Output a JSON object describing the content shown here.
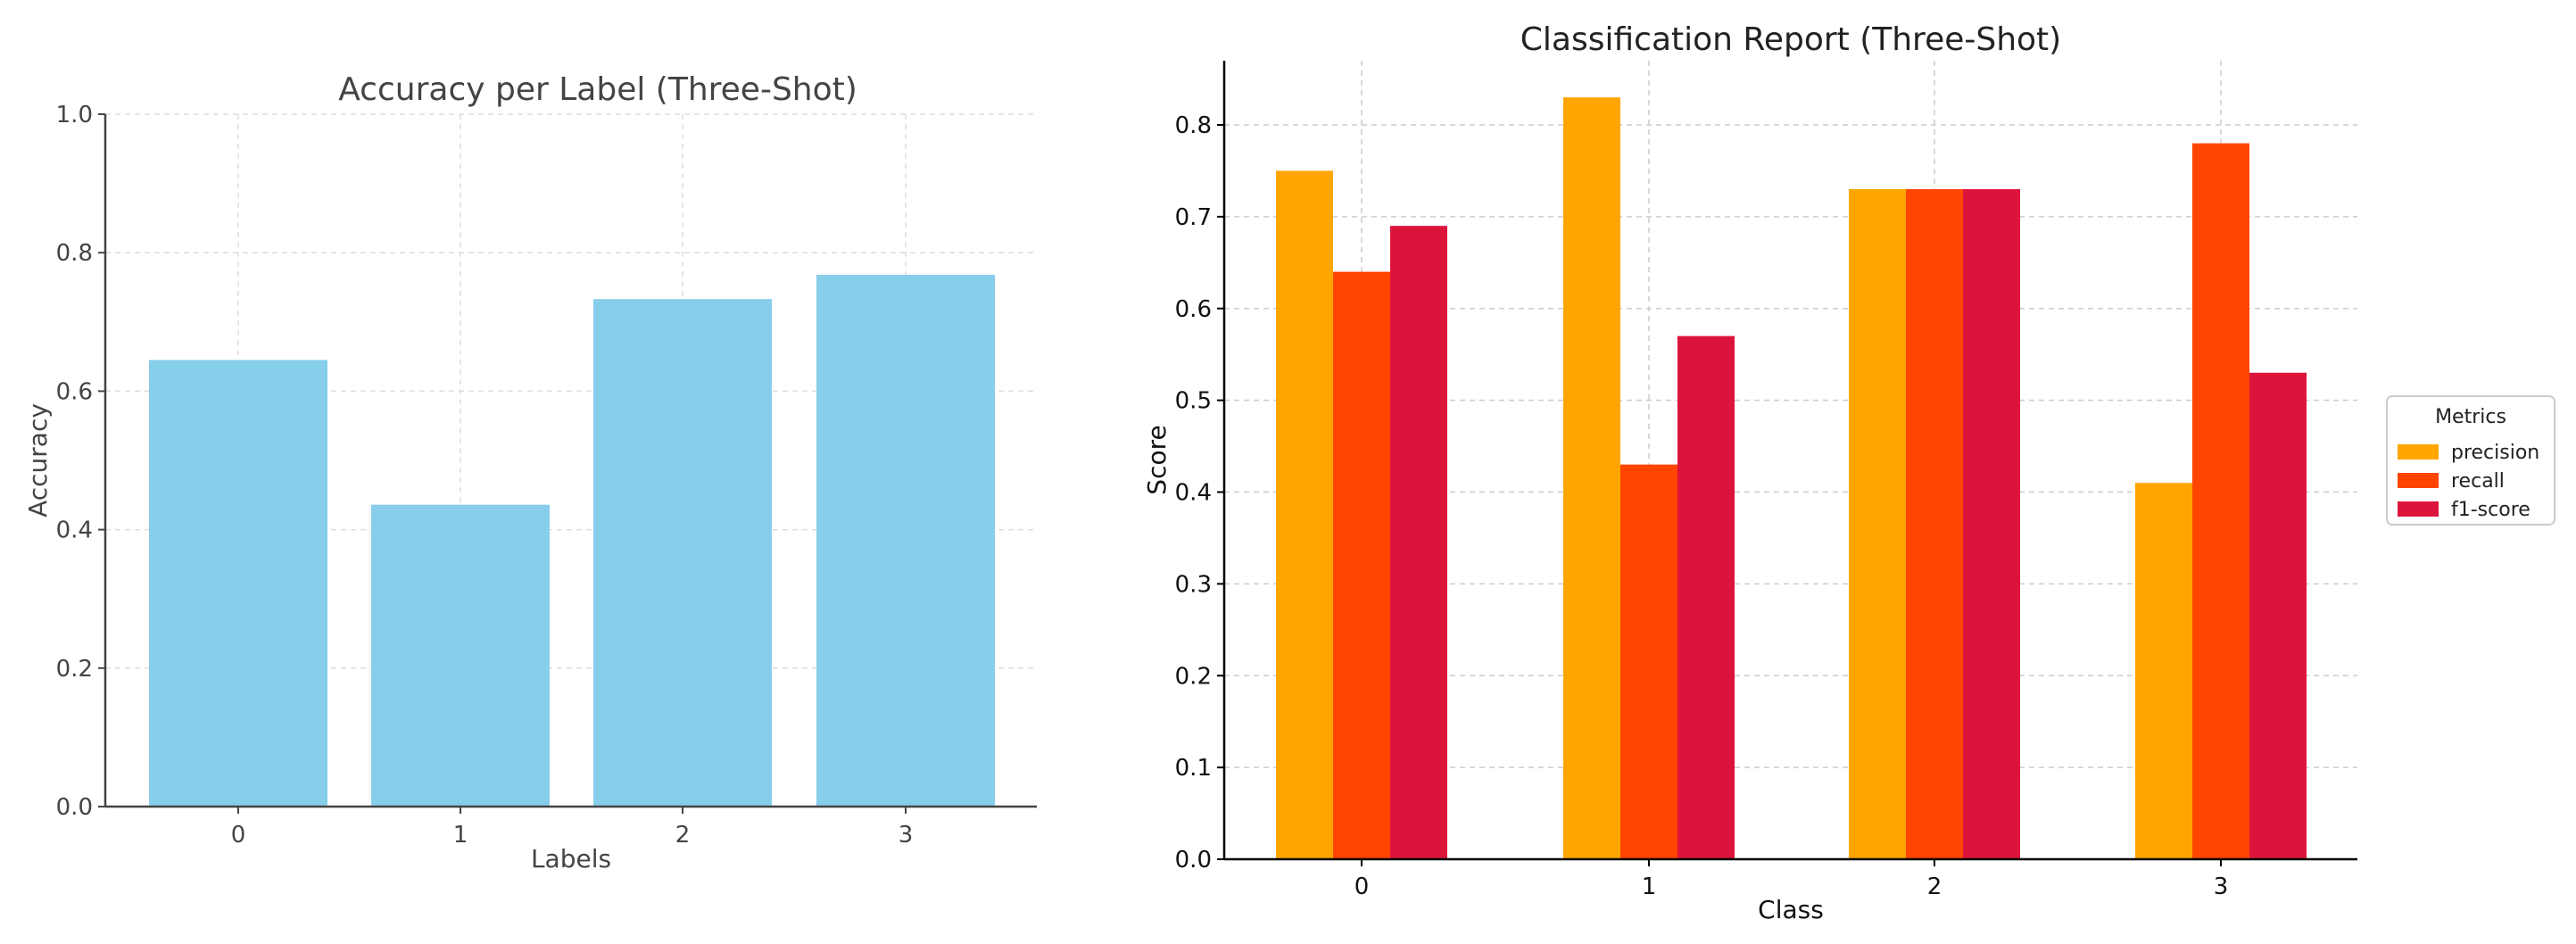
{
  "chart_data": [
    {
      "type": "bar",
      "title": "Accuracy per Label (Three-Shot)",
      "xlabel": "Labels",
      "ylabel": "Accuracy",
      "categories": [
        "0",
        "1",
        "2",
        "3"
      ],
      "values": [
        0.645,
        0.436,
        0.733,
        0.768
      ],
      "ylim": [
        0,
        1.0
      ],
      "yticks": [
        "0.0",
        "0.2",
        "0.4",
        "0.6",
        "0.8",
        "1.0"
      ],
      "yticks_values": [
        0,
        0.2,
        0.4,
        0.6,
        0.8,
        1.0
      ],
      "grid": true,
      "color": "#87CEEB"
    },
    {
      "type": "bar",
      "title": "Classification Report (Three-Shot)",
      "xlabel": "Class",
      "ylabel": "Score",
      "categories": [
        "0",
        "1",
        "2",
        "3"
      ],
      "series": [
        {
          "name": "precision",
          "values": [
            0.75,
            0.83,
            0.73,
            0.41
          ],
          "color": "#FFA500"
        },
        {
          "name": "recall",
          "values": [
            0.64,
            0.43,
            0.73,
            0.78
          ],
          "color": "#FF4500"
        },
        {
          "name": "f1-score",
          "values": [
            0.69,
            0.57,
            0.73,
            0.53
          ],
          "color": "#DC143C"
        }
      ],
      "ylim": [
        0,
        0.87
      ],
      "yticks": [
        "0.0",
        "0.1",
        "0.2",
        "0.3",
        "0.4",
        "0.5",
        "0.6",
        "0.7",
        "0.8"
      ],
      "yticks_values": [
        0,
        0.1,
        0.2,
        0.3,
        0.4,
        0.5,
        0.6,
        0.7,
        0.8
      ],
      "grid": true,
      "legend_title": "Metrics",
      "legend_position": "center-right outside"
    }
  ]
}
